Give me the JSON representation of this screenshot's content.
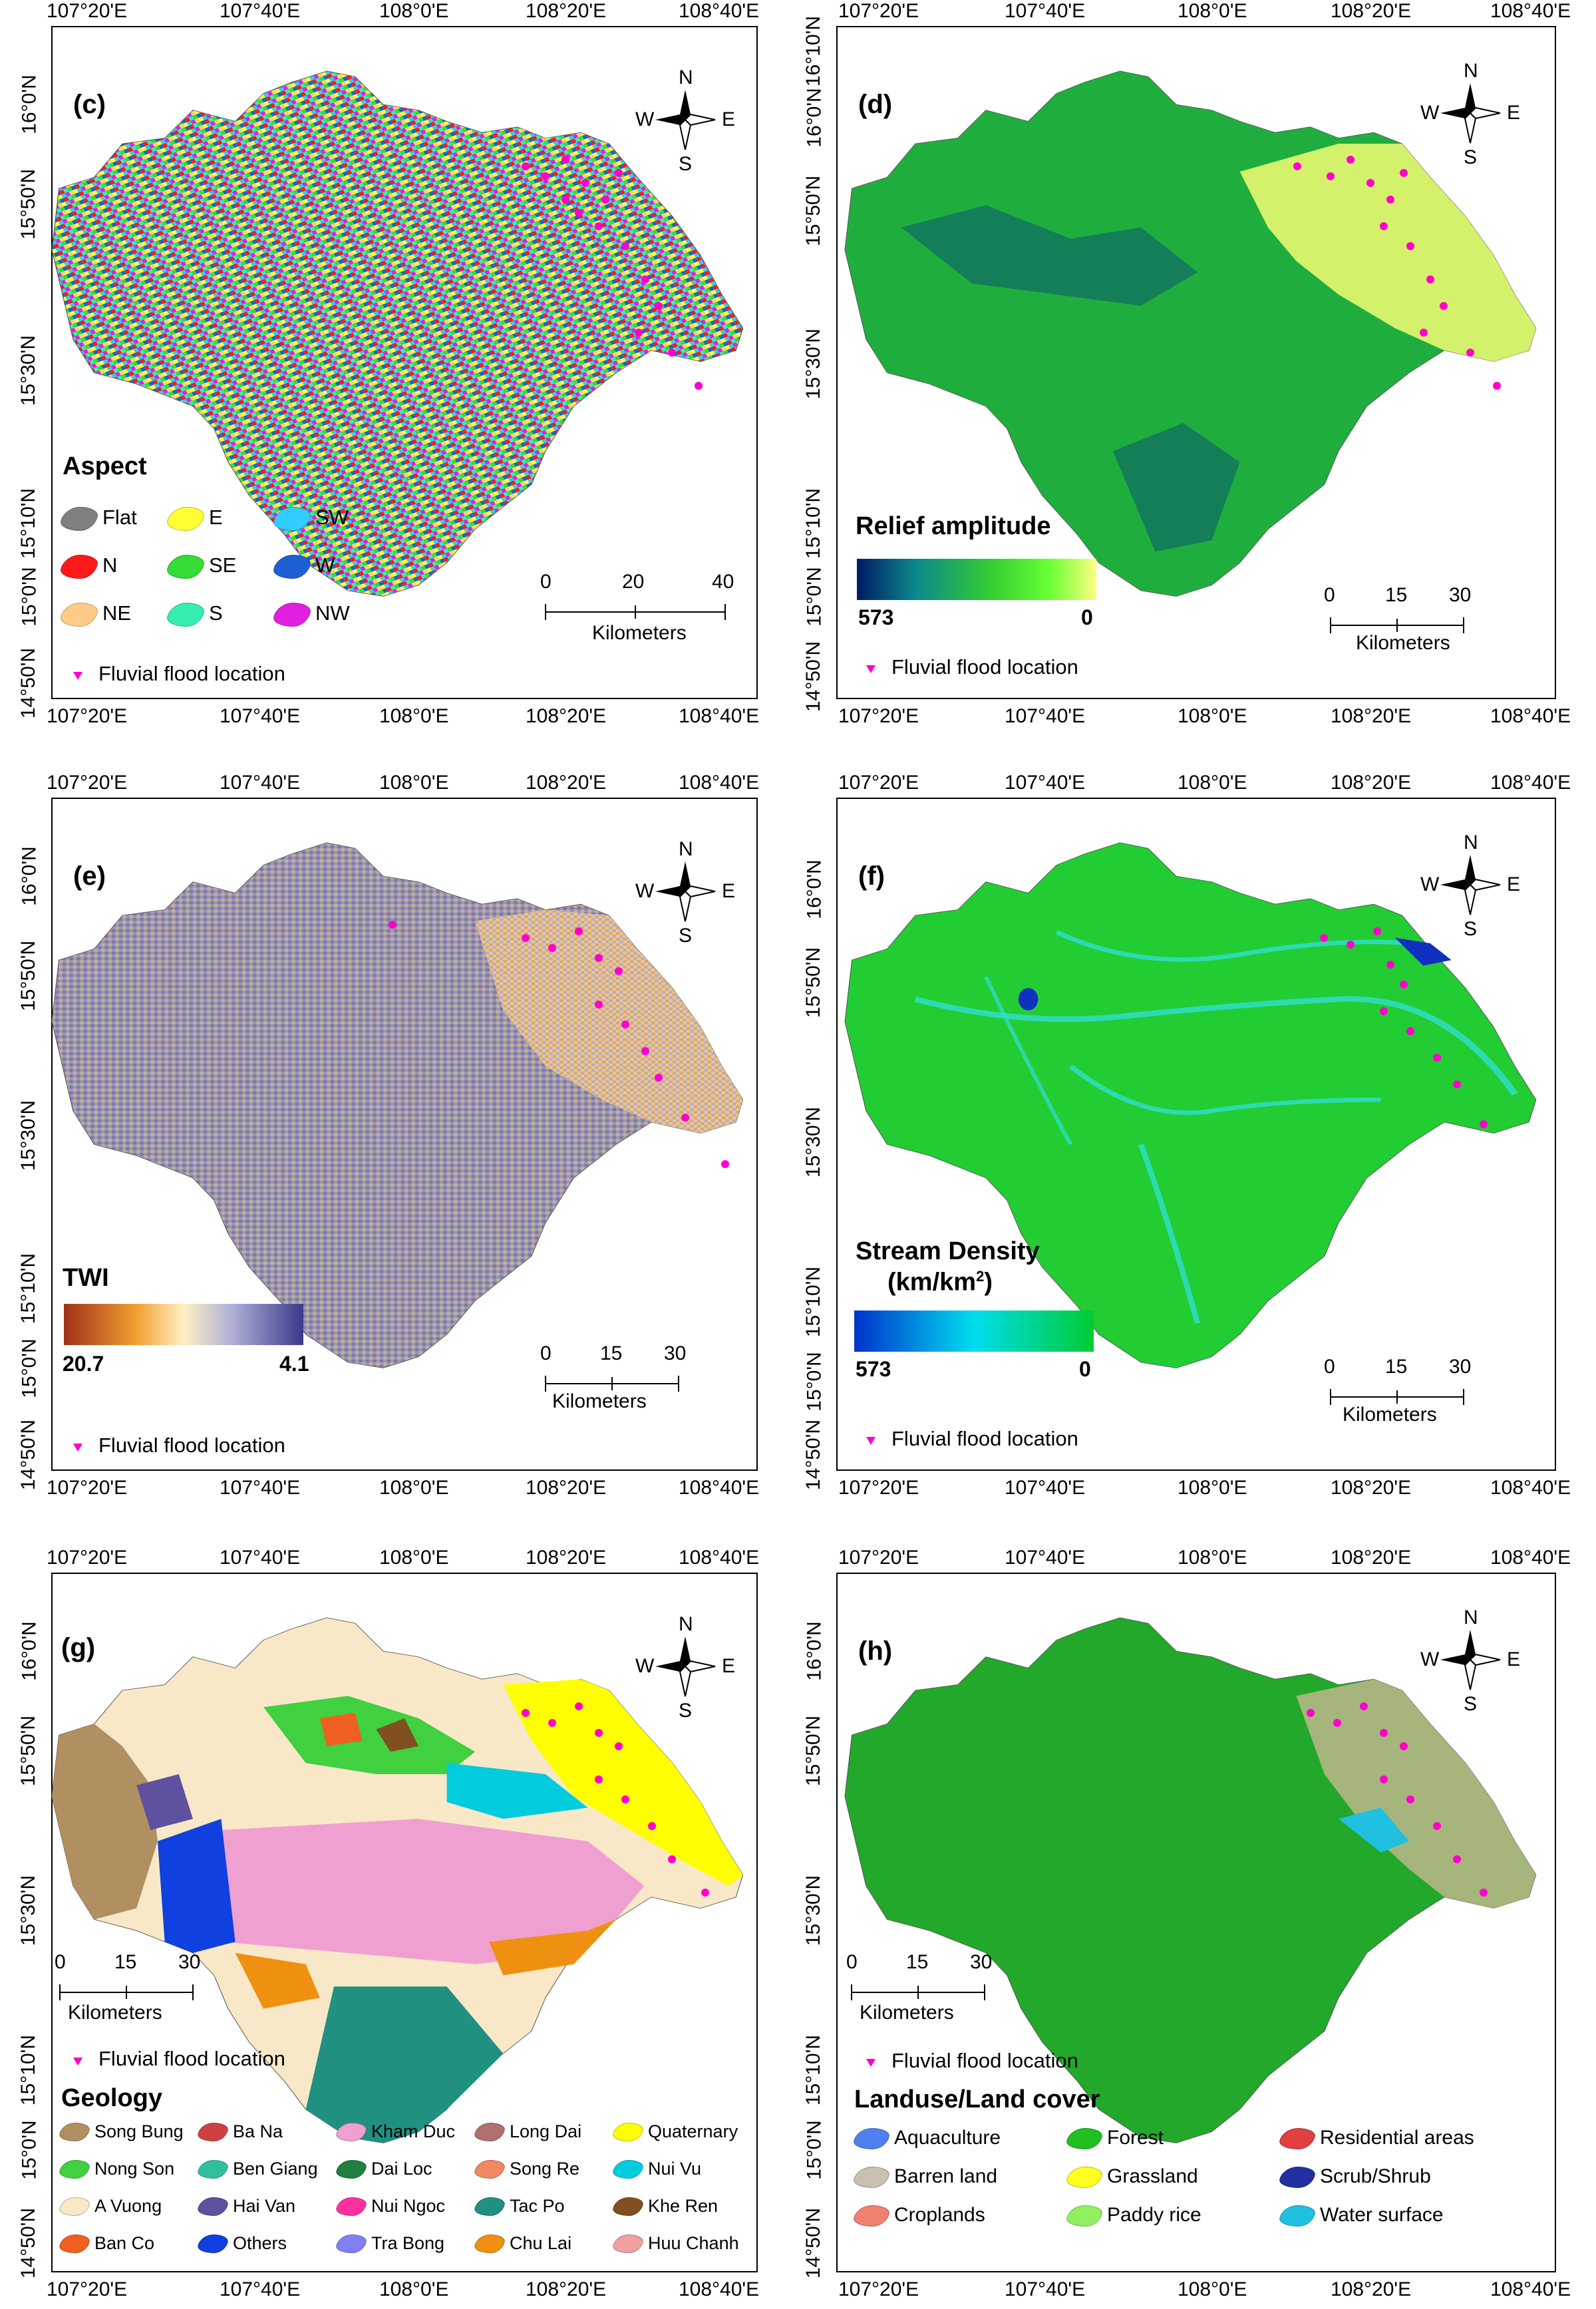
{
  "panels": {
    "c": {
      "label": "(c)",
      "legend_title": "Aspect",
      "classes": [
        {
          "name": "Flat",
          "color": "#808080"
        },
        {
          "name": "E",
          "color": "#ffff33"
        },
        {
          "name": "SW",
          "color": "#33ccff"
        },
        {
          "name": "N",
          "color": "#ff1a1a"
        },
        {
          "name": "SE",
          "color": "#33dd33"
        },
        {
          "name": "W",
          "color": "#1f5fd6"
        },
        {
          "name": "NE",
          "color": "#ffcc88"
        },
        {
          "name": "S",
          "color": "#33eeb0"
        },
        {
          "name": "NW",
          "color": "#e020e0"
        }
      ],
      "scale": {
        "ticks": [
          "0",
          "20",
          "40"
        ],
        "unit": "Kilometers"
      },
      "flood_label": "Fluvial flood location"
    },
    "d": {
      "label": "(d)",
      "legend_title": "Relief amplitude",
      "ramp_min": "573",
      "ramp_max": "0",
      "ramp_colors": [
        "#001a66",
        "#0a8a8a",
        "#33cc33",
        "#66ff33",
        "#ffff80"
      ],
      "scale": {
        "ticks": [
          "0",
          "15",
          "30"
        ],
        "unit": "Kilometers"
      },
      "flood_label": "Fluvial flood location"
    },
    "e": {
      "label": "(e)",
      "legend_title": "TWI",
      "ramp_min": "20.7",
      "ramp_max": "4.1",
      "ramp_colors": [
        "#a0301a",
        "#f0a030",
        "#fff0c0",
        "#b0b0d8",
        "#3a3a8a"
      ],
      "scale": {
        "ticks": [
          "0",
          "15",
          "30"
        ],
        "unit": "Kilometers"
      },
      "flood_label": "Fluvial flood location"
    },
    "f": {
      "label": "(f)",
      "legend_title_line1": "Stream Density",
      "legend_title_line2": "(km/km",
      "legend_title_sup": "2",
      "legend_title_close": ")",
      "ramp_min": "573",
      "ramp_max": "0",
      "ramp_colors": [
        "#0033cc",
        "#00ddee",
        "#00cc33"
      ],
      "scale": {
        "ticks": [
          "0",
          "15",
          "30"
        ],
        "unit": "Kilometers"
      },
      "flood_label": "Fluvial flood location"
    },
    "g": {
      "label": "(g)",
      "legend_title": "Geology",
      "classes": [
        {
          "name": "Song Bung",
          "color": "#b09060"
        },
        {
          "name": "Ba Na",
          "color": "#d04040"
        },
        {
          "name": "Kham Duc",
          "color": "#f0a0d0"
        },
        {
          "name": "Long Dai",
          "color": "#b07070"
        },
        {
          "name": "Quaternary",
          "color": "#ffff00"
        },
        {
          "name": "Nong Son",
          "color": "#40d040"
        },
        {
          "name": "Ben Giang",
          "color": "#30c0a0"
        },
        {
          "name": "Dai Loc",
          "color": "#208040"
        },
        {
          "name": "Song Re",
          "color": "#f08860"
        },
        {
          "name": "Nui Vu",
          "color": "#00ccdd"
        },
        {
          "name": "A Vuong",
          "color": "#f8e8c8"
        },
        {
          "name": "Hai Van",
          "color": "#6050a0"
        },
        {
          "name": "Nui Ngoc",
          "color": "#ff30a0"
        },
        {
          "name": "Tac Po",
          "color": "#209080"
        },
        {
          "name": "Khe Ren",
          "color": "#805020"
        },
        {
          "name": "Ban Co",
          "color": "#f06020"
        },
        {
          "name": "Others",
          "color": "#1040e0"
        },
        {
          "name": "Tra Bong",
          "color": "#8080f0"
        },
        {
          "name": "Chu Lai",
          "color": "#f09010"
        },
        {
          "name": "Huu Chanh",
          "color": "#f0a0a0"
        }
      ],
      "scale": {
        "ticks": [
          "0",
          "15",
          "30"
        ],
        "unit": "Kilometers"
      },
      "flood_label": "Fluvial flood location"
    },
    "h": {
      "label": "(h)",
      "legend_title": "Landuse/Land cover",
      "classes": [
        {
          "name": "Aquaculture",
          "color": "#5080f0"
        },
        {
          "name": "Forest",
          "color": "#20c020"
        },
        {
          "name": "Residential areas",
          "color": "#e04040"
        },
        {
          "name": "Barren land",
          "color": "#c8c0b0"
        },
        {
          "name": "Grassland",
          "color": "#ffff20"
        },
        {
          "name": "Scrub/Shrub",
          "color": "#2030a0"
        },
        {
          "name": "Croplands",
          "color": "#f08070"
        },
        {
          "name": "Paddy rice",
          "color": "#90f060"
        },
        {
          "name": "Water surface",
          "color": "#20c0e0"
        }
      ],
      "scale": {
        "ticks": [
          "0",
          "15",
          "30"
        ],
        "unit": "Kilometers"
      },
      "flood_label": "Fluvial flood location"
    }
  },
  "compass": {
    "n": "N",
    "s": "S",
    "e": "E",
    "w": "W"
  },
  "axis": {
    "lon_ticks": [
      "107°20'E",
      "107°40'E",
      "108°0'E",
      "108°20'E",
      "108°40'E"
    ],
    "lat_ticks_left": [
      "16°0'N",
      "15°50'N",
      "15°30'N",
      "15°10'N",
      "15°0'N",
      "14°50'N"
    ],
    "lat_ticks_right": [
      "16°10'N",
      "16°0'N",
      "15°50'N",
      "15°30'N",
      "15°10'N",
      "15°0'N",
      "14°50'N"
    ]
  },
  "colors": {
    "flood": "#ff00cc",
    "frame": "#000000"
  }
}
